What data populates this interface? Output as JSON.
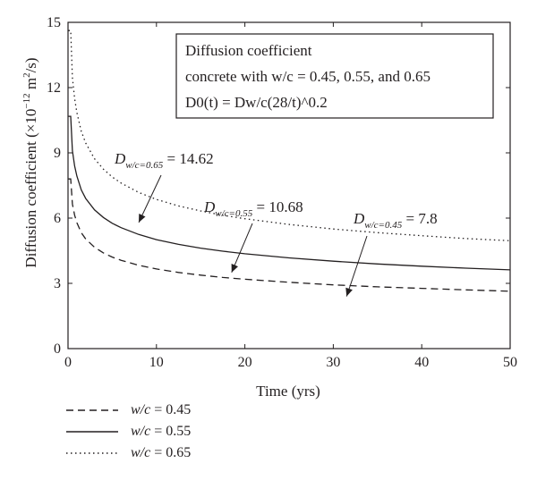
{
  "chart_data": {
    "type": "line",
    "title": "",
    "xlabel": "Time (yrs)",
    "ylabel": "Diffusion coefficient (×10",
    "ylabel_exp": "−12",
    "ylabel_unit_pre": " m",
    "ylabel_unit_sup": "2",
    "ylabel_unit_post": "/s)",
    "xlim": [
      0,
      50
    ],
    "ylim": [
      0,
      15
    ],
    "xticks": [
      0,
      10,
      20,
      30,
      40,
      50
    ],
    "yticks": [
      0,
      3,
      6,
      9,
      12,
      15
    ],
    "grid": false,
    "legend_position": "below",
    "model_exponent": 0.2,
    "reference_age": 28,
    "x": [
      0.05,
      0.1,
      0.2,
      0.3,
      0.5,
      0.75,
      1,
      1.5,
      2,
      3,
      4,
      5,
      6,
      8,
      10,
      12.5,
      15,
      17.5,
      20,
      25,
      30,
      35,
      40,
      45,
      50
    ],
    "series": [
      {
        "name": "w/c = 0.45",
        "D28": 7.8,
        "style": "dashed",
        "values": [
          7.8,
          7.8,
          7.8,
          7.8,
          6.65,
          6.13,
          5.79,
          5.33,
          5.04,
          4.66,
          4.4,
          4.21,
          4.06,
          3.83,
          3.66,
          3.5,
          3.38,
          3.27,
          3.19,
          3.05,
          2.93,
          2.84,
          2.77,
          2.7,
          2.64
        ]
      },
      {
        "name": "w/c = 0.55",
        "D28": 10.68,
        "style": "solid",
        "values": [
          10.68,
          10.68,
          10.68,
          10.68,
          9.1,
          8.39,
          7.93,
          7.3,
          6.9,
          6.38,
          6.03,
          5.76,
          5.56,
          5.25,
          5.01,
          4.79,
          4.62,
          4.48,
          4.36,
          4.17,
          4.02,
          3.89,
          3.79,
          3.7,
          3.62
        ]
      },
      {
        "name": "w/c = 0.65",
        "D28": 14.62,
        "style": "dotted",
        "values": [
          14.62,
          14.62,
          14.62,
          14.62,
          12.46,
          11.49,
          10.85,
          9.99,
          9.45,
          8.73,
          8.25,
          7.89,
          7.61,
          7.18,
          6.86,
          6.56,
          6.33,
          6.13,
          5.97,
          5.71,
          5.5,
          5.33,
          5.19,
          5.06,
          4.96
        ]
      }
    ],
    "infobox": {
      "line1": "Diffusion coefficient",
      "line2": "concrete with w/c = 0.45, 0.55, and 0.65",
      "line3": "D0(t) = Dw/c(28/t)^0.2"
    },
    "annotations": [
      {
        "subscript": "w/c=0.65",
        "value": "14.62",
        "points_to": [
          8,
          5.8
        ]
      },
      {
        "subscript": "w/c=0.55",
        "value": "10.68",
        "points_to": [
          18.5,
          3.5
        ]
      },
      {
        "subscript": "w/c=0.45",
        "value": "7.8",
        "points_to": [
          31.5,
          2.4
        ]
      }
    ]
  },
  "legend": {
    "items": [
      {
        "prefix": "w/c",
        "suffix": " = 0.45",
        "style": "dashed"
      },
      {
        "prefix": "w/c",
        "suffix": " = 0.55",
        "style": "solid"
      },
      {
        "prefix": "w/c",
        "suffix": " = 0.65",
        "style": "dotted"
      }
    ]
  }
}
